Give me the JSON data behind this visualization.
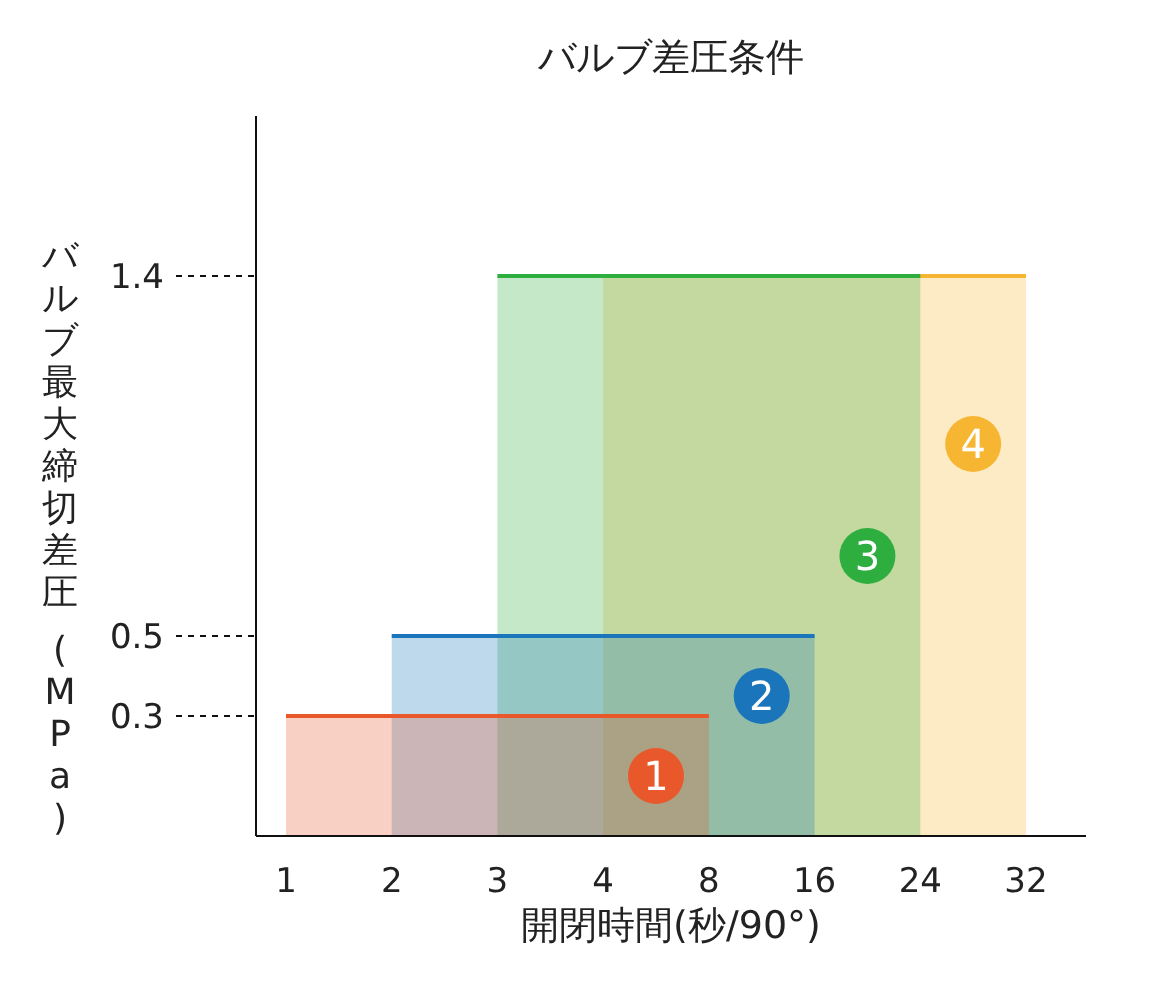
{
  "chart_data": {
    "type": "area",
    "title": "バルブ差圧条件",
    "xlabel": "開閉時間(秒/90°)",
    "ylabel": "バルブ最大締切差圧 (MPa)",
    "categories": [
      "1",
      "2",
      "3",
      "4",
      "8",
      "16",
      "24",
      "32"
    ],
    "series": [
      {
        "name": "1",
        "color": "#e8582a",
        "values": [
          0.3,
          0.3,
          0.3,
          0.3,
          0.3,
          null,
          null,
          null
        ]
      },
      {
        "name": "2",
        "color": "#1a75bb",
        "values": [
          null,
          0.5,
          0.5,
          0.5,
          0.5,
          0.5,
          null,
          null
        ]
      },
      {
        "name": "3",
        "color": "#2eae3e",
        "values": [
          null,
          null,
          1.4,
          1.4,
          1.4,
          1.4,
          1.4,
          null
        ]
      },
      {
        "name": "4",
        "color": "#f7b632",
        "values": [
          null,
          null,
          null,
          1.4,
          1.4,
          1.4,
          1.4,
          1.4
        ]
      }
    ],
    "ylim": [
      0,
      1.8
    ],
    "yticks": [
      0.3,
      0.5,
      1.4
    ],
    "grid": false
  }
}
